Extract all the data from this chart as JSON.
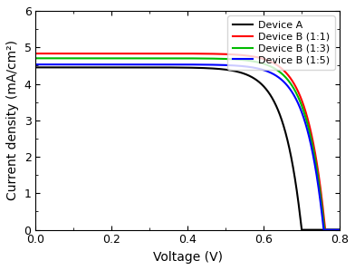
{
  "title": "",
  "xlabel": "Voltage (V)",
  "ylabel": "Current density (mA/cm²)",
  "xlim": [
    0,
    0.8
  ],
  "ylim": [
    0,
    6
  ],
  "xticks": [
    0.0,
    0.2,
    0.4,
    0.6,
    0.8
  ],
  "yticks": [
    0,
    1,
    2,
    3,
    4,
    5,
    6
  ],
  "curves": [
    {
      "label": "Device A",
      "color": "#000000",
      "Jsc": 4.45,
      "Voc": 0.7,
      "ideality": 1.8,
      "J0_exp": -6.5
    },
    {
      "label": "Device B (1:1)",
      "color": "#ff0000",
      "Jsc": 4.83,
      "Voc": 0.762,
      "ideality": 1.8,
      "J0_exp": -7.0
    },
    {
      "label": "Device B (1:3)",
      "color": "#00bb00",
      "Jsc": 4.7,
      "Voc": 0.76,
      "ideality": 1.8,
      "J0_exp": -7.0
    },
    {
      "label": "Device B (1:5)",
      "color": "#0000ff",
      "Jsc": 4.53,
      "Voc": 0.758,
      "ideality": 1.8,
      "J0_exp": -7.0
    }
  ],
  "legend_loc": "upper right",
  "legend_fontsize": 8,
  "linewidth": 1.5,
  "figsize": [
    3.92,
    2.98
  ],
  "dpi": 100
}
